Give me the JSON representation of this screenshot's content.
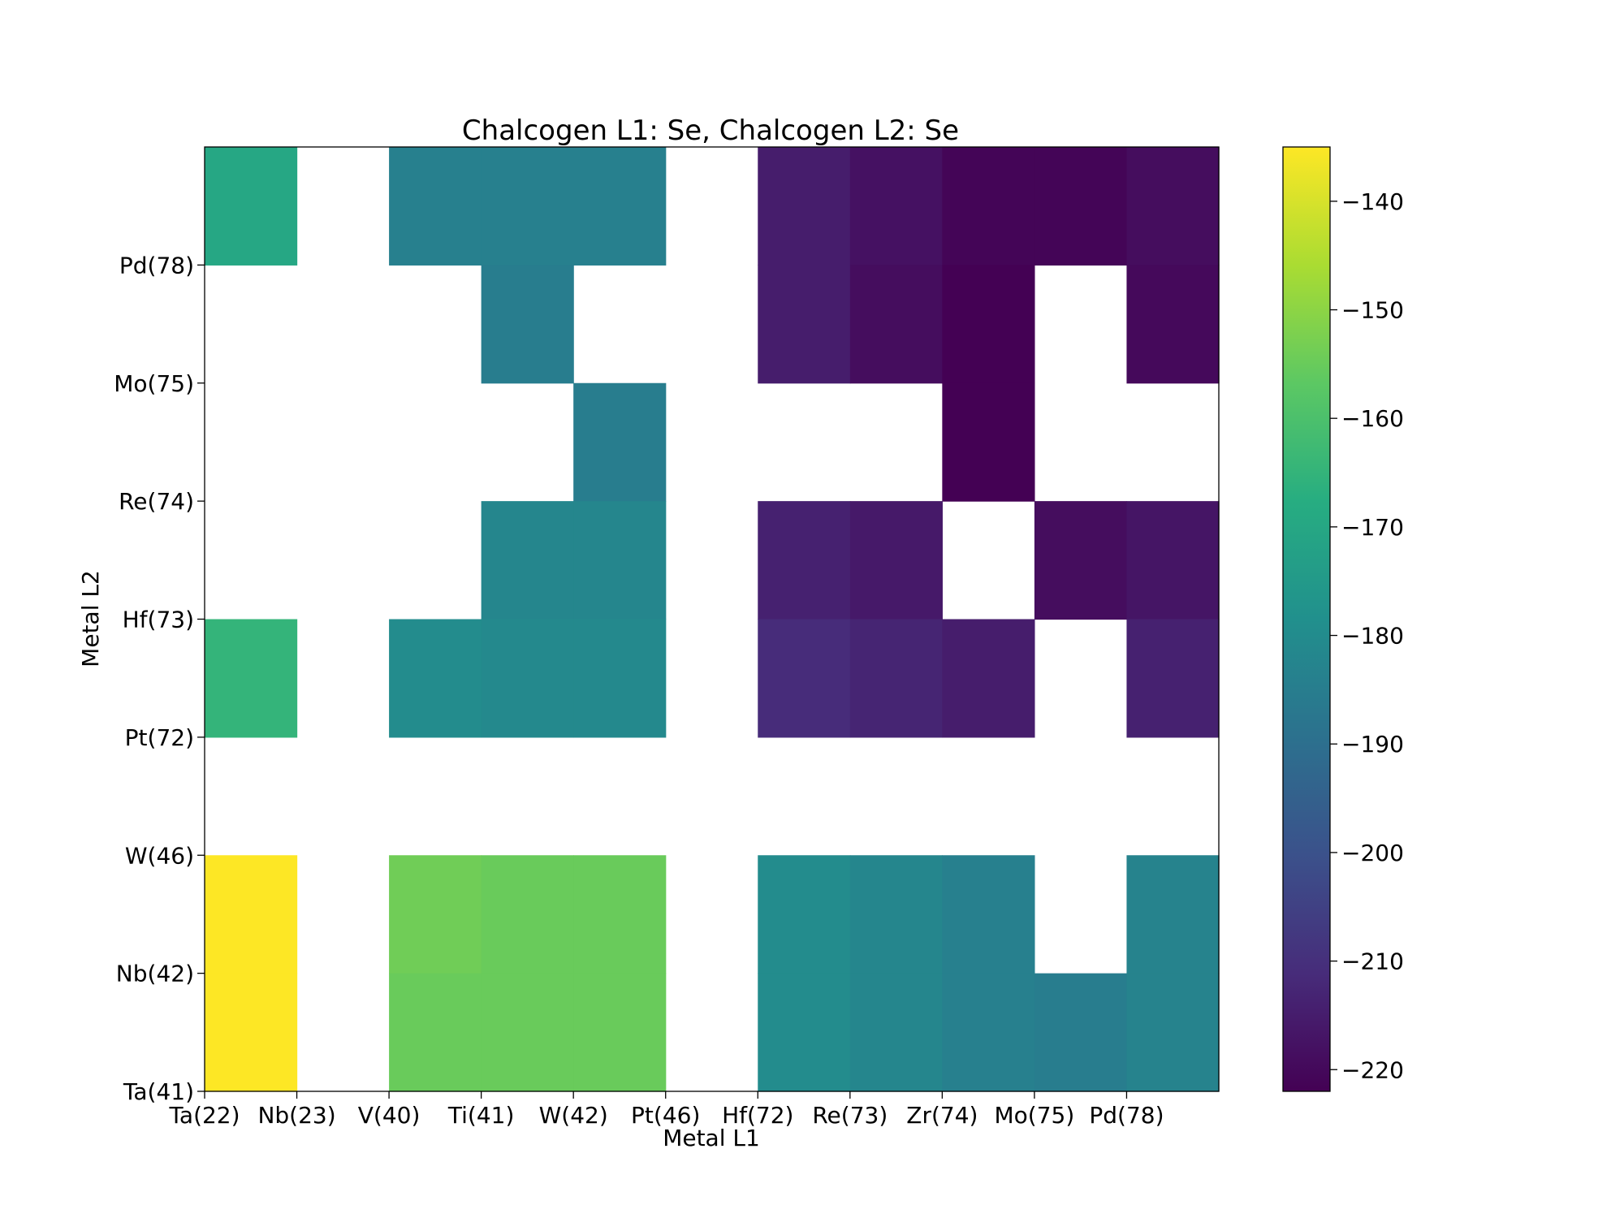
{
  "chart_data": {
    "type": "heatmap",
    "title": "Chalcogen L1: Se, Chalcogen L2: Se",
    "xlabel": "Metal L1",
    "ylabel": "Metal L2",
    "x_tick_labels": [
      "Ta(22)",
      "Nb(23)",
      "V(40)",
      "Ti(41)",
      "W(42)",
      "Pt(46)",
      "Hf(72)",
      "Re(73)",
      "Zr(74)",
      "Mo(75)",
      "Pd(78)"
    ],
    "y_tick_labels": [
      "Ta(41)",
      "Nb(42)",
      "W(46)",
      "Pt(72)",
      "Hf(73)",
      "Re(74)",
      "Mo(75)",
      "Pd(78)"
    ],
    "colorbar": {
      "colormap": "viridis",
      "range": [
        -222,
        -135
      ],
      "ticks": [
        -140,
        -150,
        -160,
        -170,
        -180,
        -190,
        -200,
        -210,
        -220
      ],
      "tick_labels": [
        "−140",
        "−150",
        "−160",
        "−170",
        "−180",
        "−190",
        "−200",
        "−210",
        "−220"
      ]
    },
    "grid": false,
    "n_columns": 11,
    "n_rows": 8,
    "rows_top_to_bottom": [
      [
        -170,
        null,
        -184,
        -184,
        -184,
        null,
        -215,
        -218,
        -221,
        -221,
        -219
      ],
      [
        null,
        null,
        null,
        -185,
        null,
        null,
        -215,
        -219,
        -222,
        null,
        -220
      ],
      [
        null,
        null,
        null,
        null,
        -185,
        null,
        null,
        null,
        -222,
        null,
        null
      ],
      [
        null,
        null,
        null,
        -182,
        -182,
        null,
        -214,
        -216,
        null,
        -219,
        -217
      ],
      [
        -165,
        null,
        -180,
        -181,
        -181,
        null,
        -211,
        -213,
        -215,
        null,
        -214
      ],
      [
        null,
        null,
        null,
        null,
        null,
        null,
        null,
        null,
        null,
        null,
        null
      ],
      [
        -135,
        null,
        -154,
        -155,
        -155,
        null,
        -180,
        -182,
        -184,
        null,
        -183
      ],
      [
        -135,
        null,
        -155,
        -155,
        -155,
        null,
        -180,
        -182,
        -184,
        -185,
        -183
      ]
    ]
  }
}
